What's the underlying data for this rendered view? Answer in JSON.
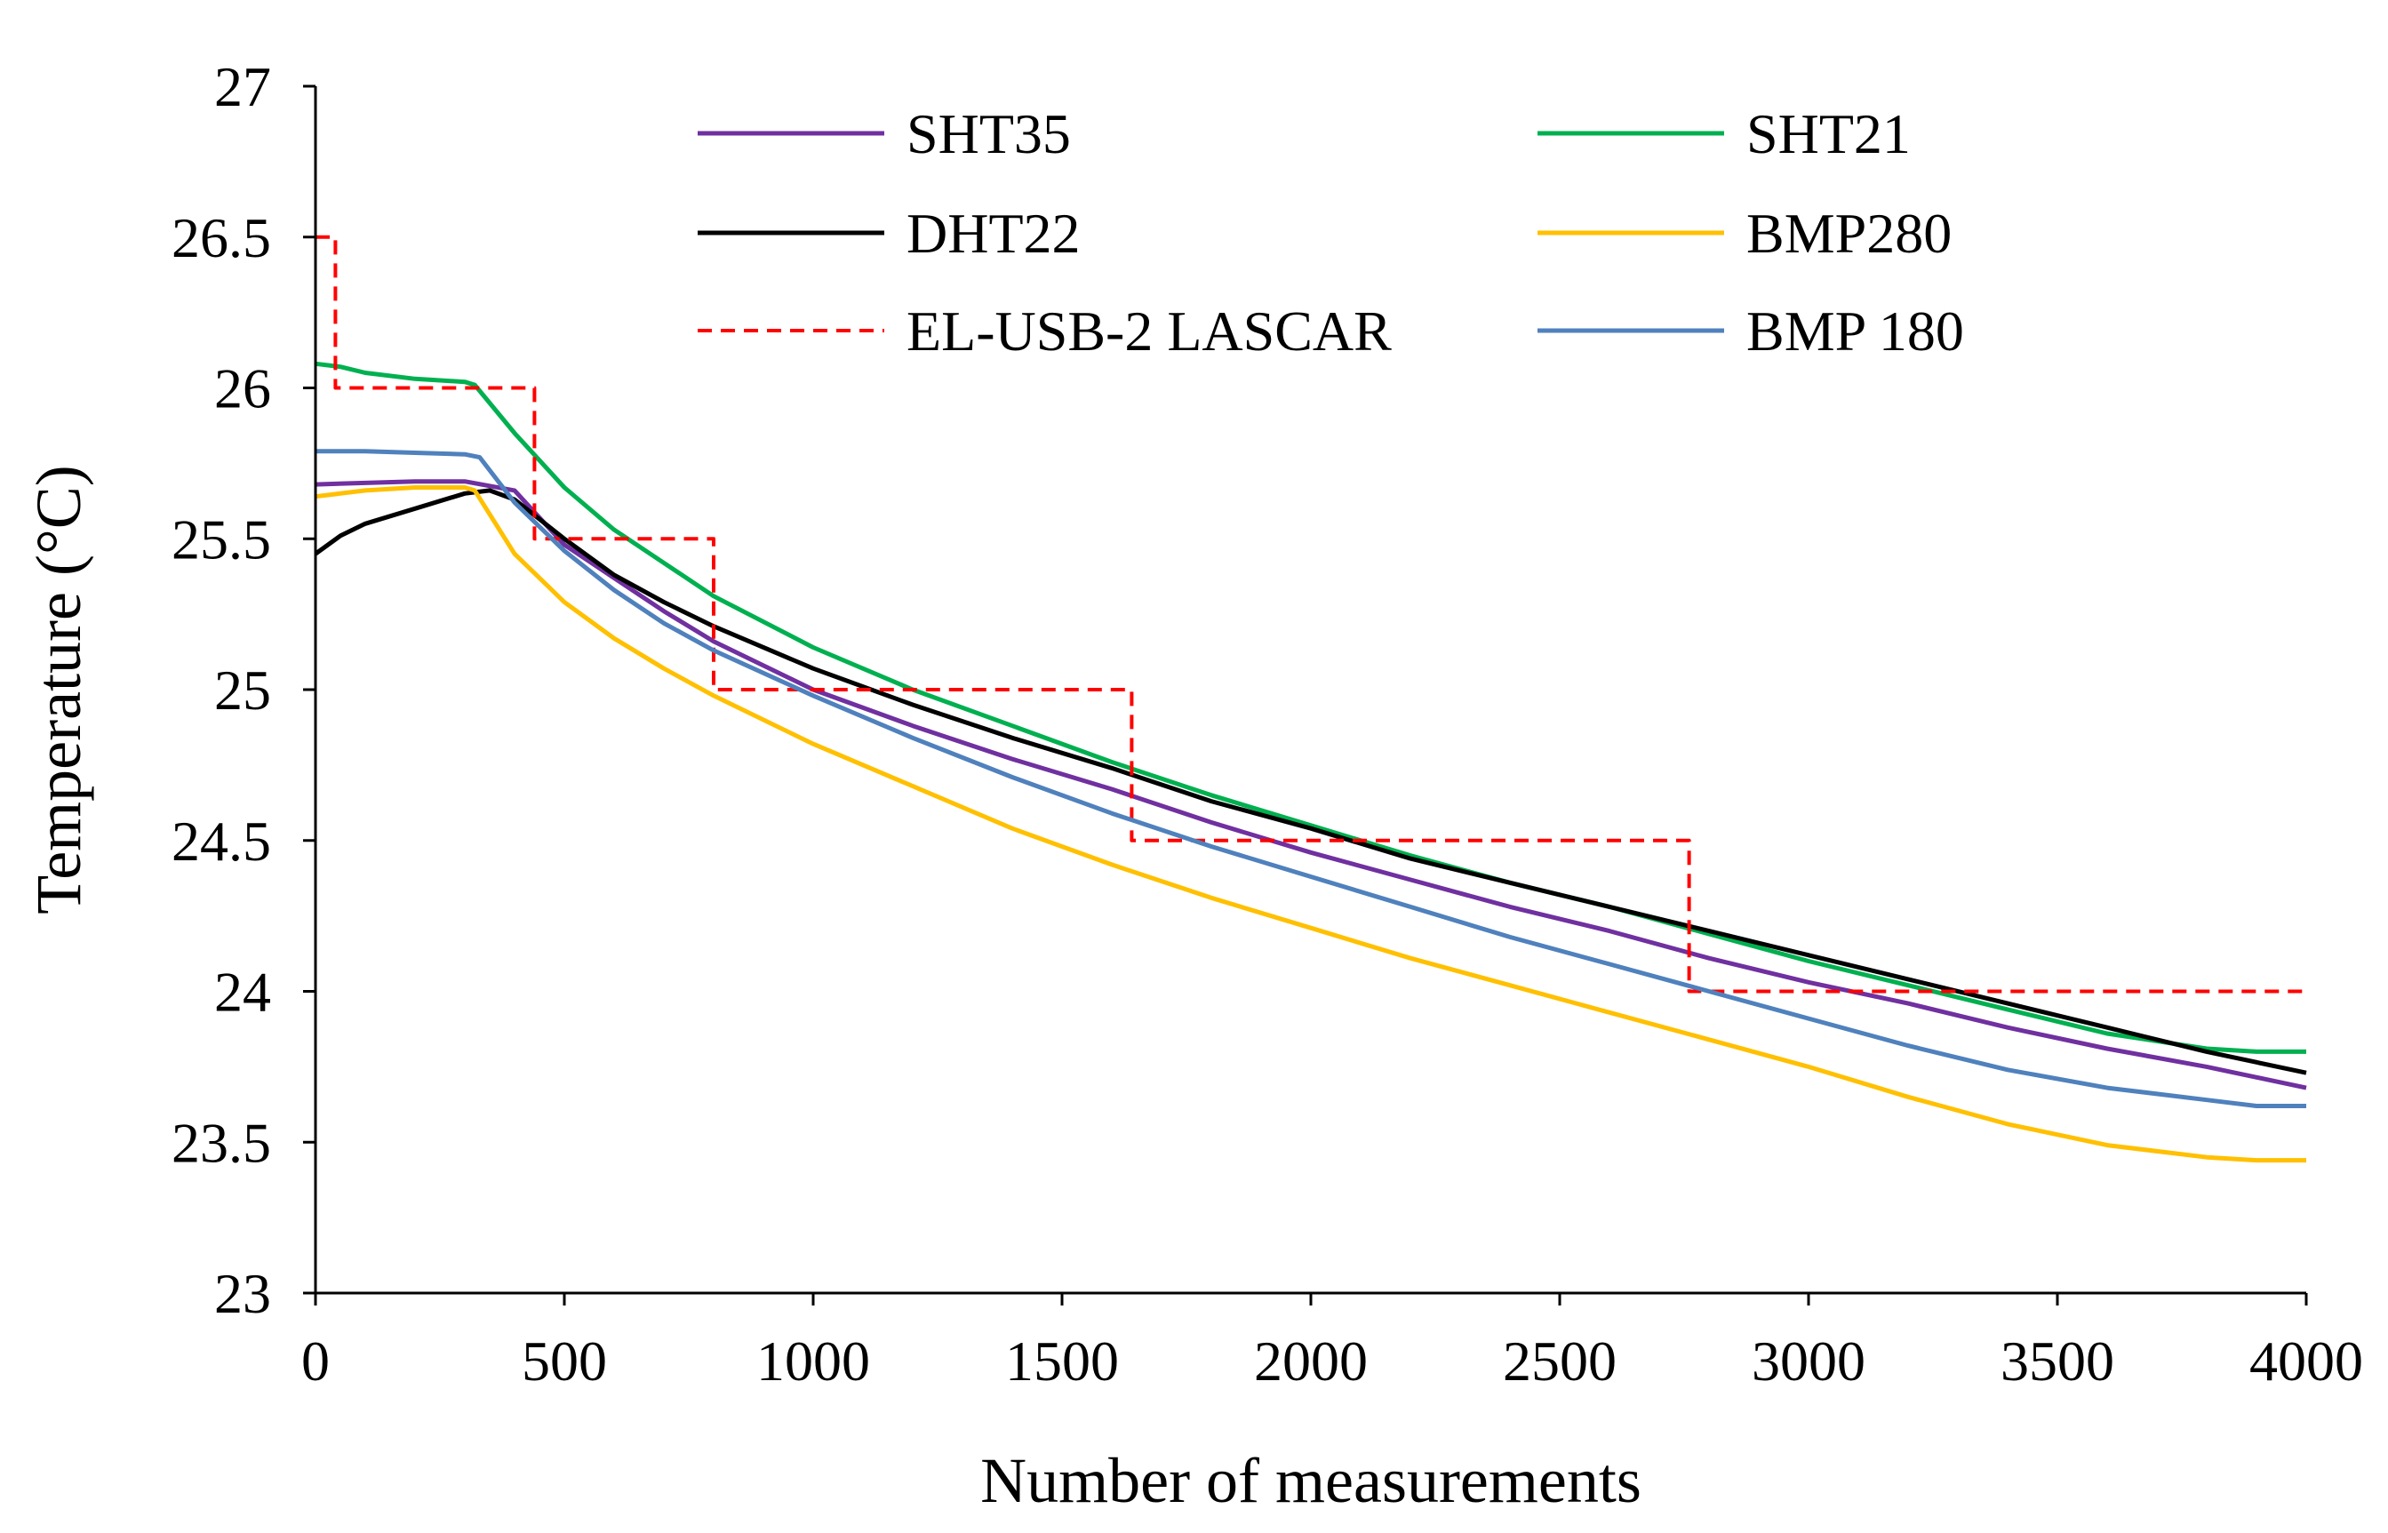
{
  "chart_data": {
    "type": "line",
    "title": "",
    "xlabel": "Number of measurements",
    "ylabel": "Temperature (°C)",
    "xlim": [
      0,
      4000
    ],
    "ylim": [
      23,
      27
    ],
    "xticks": [
      0,
      500,
      1000,
      1500,
      2000,
      2500,
      3000,
      3500,
      4000
    ],
    "xtick_labels": [
      "0",
      "500",
      "1000",
      "1500",
      "2000",
      "2500",
      "3000",
      "3500",
      "4000"
    ],
    "yticks": [
      23,
      23.5,
      24,
      24.5,
      25,
      25.5,
      26,
      26.5,
      27
    ],
    "ytick_labels": [
      "23",
      "23.5",
      "24",
      "24.5",
      "25",
      "25.5",
      "26",
      "26.5",
      "27"
    ],
    "grid": false,
    "legend_position": "top-right",
    "legend_columns": 2,
    "series": [
      {
        "name": "SHT35",
        "color": "#7030A0",
        "dash": "solid",
        "x": [
          0,
          100,
          200,
          300,
          400,
          500,
          600,
          700,
          800,
          1000,
          1200,
          1400,
          1600,
          1800,
          2000,
          2200,
          2400,
          2600,
          2800,
          3000,
          3200,
          3400,
          3600,
          3800,
          4000
        ],
        "y": [
          25.68,
          25.685,
          25.69,
          25.69,
          25.66,
          25.48,
          25.37,
          25.26,
          25.16,
          25.0,
          24.88,
          24.77,
          24.67,
          24.56,
          24.46,
          24.37,
          24.28,
          24.2,
          24.11,
          24.03,
          23.96,
          23.88,
          23.81,
          23.75,
          23.68
        ]
      },
      {
        "name": "SHT21",
        "color": "#00B050",
        "dash": "solid",
        "x": [
          0,
          50,
          100,
          200,
          300,
          320,
          400,
          500,
          600,
          700,
          800,
          1000,
          1200,
          1400,
          1600,
          1800,
          2000,
          2200,
          2400,
          2600,
          2800,
          3000,
          3200,
          3400,
          3600,
          3800,
          3900,
          4000
        ],
        "y": [
          26.08,
          26.07,
          26.05,
          26.03,
          26.02,
          26.01,
          25.85,
          25.67,
          25.53,
          25.42,
          25.31,
          25.14,
          25.0,
          24.88,
          24.76,
          24.65,
          24.55,
          24.45,
          24.36,
          24.28,
          24.19,
          24.1,
          24.02,
          23.94,
          23.86,
          23.81,
          23.8,
          23.8
        ]
      },
      {
        "name": "DHT22",
        "color": "#000000",
        "dash": "solid",
        "x": [
          0,
          50,
          100,
          200,
          300,
          350,
          400,
          500,
          600,
          700,
          800,
          1000,
          1200,
          1400,
          1600,
          1800,
          2000,
          2200,
          2400,
          2600,
          2800,
          3000,
          3200,
          3400,
          3600,
          3800,
          4000
        ],
        "y": [
          25.45,
          25.51,
          25.55,
          25.6,
          25.65,
          25.66,
          25.63,
          25.5,
          25.38,
          25.29,
          25.21,
          25.07,
          24.95,
          24.84,
          24.74,
          24.63,
          24.54,
          24.44,
          24.36,
          24.28,
          24.2,
          24.12,
          24.04,
          23.96,
          23.88,
          23.8,
          23.73
        ]
      },
      {
        "name": "BMP280",
        "color": "#FFC000",
        "dash": "solid",
        "x": [
          0,
          100,
          200,
          300,
          320,
          400,
          500,
          600,
          700,
          800,
          1000,
          1200,
          1400,
          1600,
          1800,
          2000,
          2200,
          2400,
          2600,
          2800,
          3000,
          3200,
          3400,
          3600,
          3800,
          3900,
          4000
        ],
        "y": [
          25.64,
          25.66,
          25.67,
          25.67,
          25.66,
          25.45,
          25.29,
          25.17,
          25.07,
          24.98,
          24.82,
          24.68,
          24.54,
          24.42,
          24.31,
          24.21,
          24.11,
          24.02,
          23.93,
          23.84,
          23.75,
          23.65,
          23.56,
          23.49,
          23.45,
          23.44,
          23.44
        ]
      },
      {
        "name": "EL-USB-2 LASCAR",
        "color": "#FF0000",
        "dash": "dashed",
        "x": [
          0,
          40,
          40,
          440,
          440,
          800,
          800,
          1640,
          1640,
          2760,
          2760,
          4000
        ],
        "y": [
          26.5,
          26.5,
          26.0,
          26.0,
          25.5,
          25.5,
          25.0,
          25.0,
          24.5,
          24.5,
          24.0,
          24.0
        ]
      },
      {
        "name": "BMP 180",
        "color": "#4F81BD",
        "dash": "solid",
        "x": [
          0,
          100,
          200,
          300,
          330,
          400,
          500,
          600,
          700,
          800,
          1000,
          1200,
          1400,
          1600,
          1800,
          2000,
          2200,
          2400,
          2600,
          2800,
          3000,
          3200,
          3400,
          3600,
          3800,
          3900,
          4000
        ],
        "y": [
          25.79,
          25.79,
          25.785,
          25.78,
          25.77,
          25.62,
          25.46,
          25.33,
          25.22,
          25.13,
          24.98,
          24.84,
          24.71,
          24.59,
          24.48,
          24.38,
          24.28,
          24.18,
          24.09,
          24.0,
          23.91,
          23.82,
          23.74,
          23.68,
          23.64,
          23.62,
          23.62
        ]
      }
    ]
  }
}
